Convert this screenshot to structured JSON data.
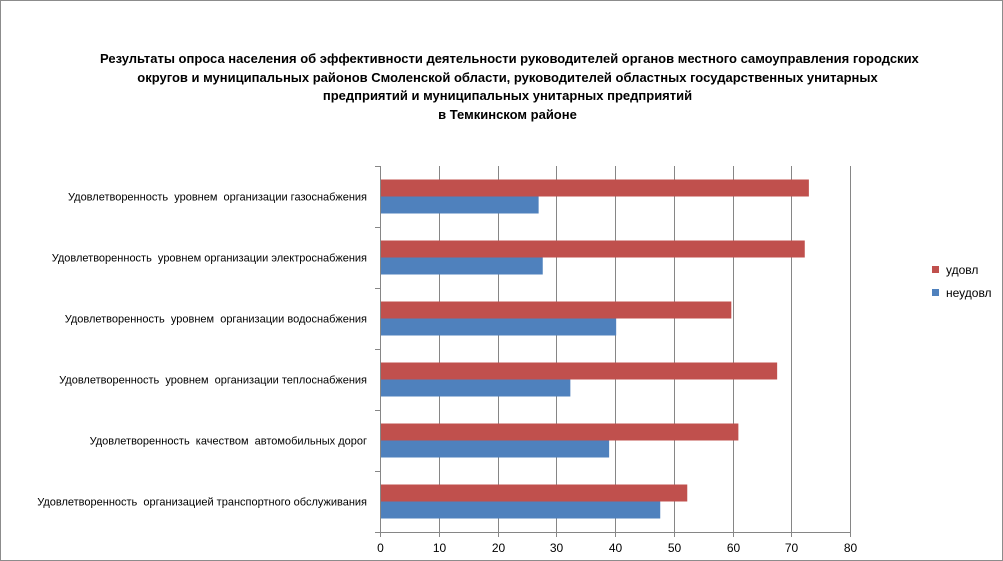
{
  "title_lines": [
    "Результаты опроса населения об эффективности деятельности руководителей органов местного самоуправления городских",
    "округов и муниципальных районов Смоленской области, руководителей областных государственных унитарных",
    "предприятий и муниципальных унитарных предприятий",
    "в Темкинском районе"
  ],
  "colors": {
    "udovl": "#C0504D",
    "neudovl": "#4F81BD",
    "grid": "#868686",
    "axis": "#868686"
  },
  "chart_data": {
    "type": "bar",
    "orientation": "horizontal",
    "categories": [
      "Удовлетворенность  уровнем  организации газоснабжения",
      "Удовлетворенность  уровнем организации электроснабжения",
      "Удовлетворенность  уровнем  организации водоснабжения",
      "Удовлетворенность  уровнем  организации теплоснабжения",
      "Удовлетворенность  качеством  автомобильных дорог",
      "Удовлетворенность  организацией транспортного обслуживания"
    ],
    "series": [
      {
        "name": "удовл",
        "values": [
          73,
          72.3,
          59.8,
          67.6,
          61,
          52.3
        ]
      },
      {
        "name": "неудовл",
        "values": [
          27,
          27.7,
          40.2,
          32.4,
          39,
          47.7
        ]
      }
    ],
    "xlim": [
      0,
      80
    ],
    "xticks": [
      0,
      10,
      20,
      30,
      40,
      50,
      60,
      70,
      80
    ],
    "grid": true,
    "legend_position": "right"
  }
}
